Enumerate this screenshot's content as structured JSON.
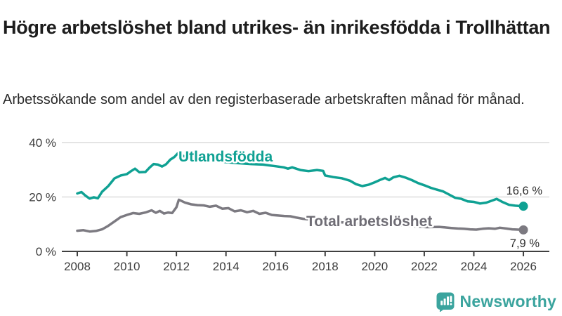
{
  "header": {
    "title": "Högre arbetslöshet bland utrikes- än inrikesfödda i Trollhättan",
    "subtitle": "Arbetssökande som andel av den registerbaserade arbetskraften månad för månad."
  },
  "chart_data": {
    "type": "line",
    "title": "Högre arbetslöshet bland utrikes- än inrikesfödda i Trollhättan",
    "subtitle": "Arbetssökande som andel av den registerbaserade arbetskraften månad för månad.",
    "grid": "horizontal",
    "legend_position": "inline-labels",
    "x_axis": {
      "ticks": [
        2008,
        2010,
        2012,
        2014,
        2016,
        2018,
        2020,
        2022,
        2024,
        2026
      ],
      "range": [
        2008,
        2026
      ],
      "unit": "year"
    },
    "y_axis": {
      "ticks": [
        0,
        20,
        40
      ],
      "tick_labels": [
        "0 %",
        "20 %",
        "40 %"
      ],
      "range": [
        0,
        40
      ],
      "unit": "%"
    },
    "series": [
      {
        "name": "Utlandsfödda",
        "color": "#0fa193",
        "end_label": "16,6 %",
        "end_value": 16.6,
        "points": [
          [
            2008.0,
            21.3
          ],
          [
            2008.17,
            21.8
          ],
          [
            2008.33,
            20.5
          ],
          [
            2008.5,
            19.4
          ],
          [
            2008.67,
            19.9
          ],
          [
            2008.83,
            19.5
          ],
          [
            2009.0,
            21.9
          ],
          [
            2009.25,
            24.0
          ],
          [
            2009.5,
            26.8
          ],
          [
            2009.75,
            27.9
          ],
          [
            2010.0,
            28.4
          ],
          [
            2010.17,
            29.5
          ],
          [
            2010.33,
            30.4
          ],
          [
            2010.5,
            29.1
          ],
          [
            2010.75,
            29.2
          ],
          [
            2010.92,
            30.8
          ],
          [
            2011.08,
            32.1
          ],
          [
            2011.25,
            31.9
          ],
          [
            2011.42,
            31.2
          ],
          [
            2011.58,
            32.0
          ],
          [
            2011.75,
            33.7
          ],
          [
            2011.92,
            34.7
          ],
          [
            2012.05,
            36.0
          ],
          [
            2012.3,
            35.0
          ],
          [
            2012.6,
            34.4
          ],
          [
            2013.0,
            34.0
          ],
          [
            2013.5,
            33.3
          ],
          [
            2014.0,
            32.8
          ],
          [
            2014.5,
            32.4
          ],
          [
            2015.0,
            32.1
          ],
          [
            2015.5,
            31.9
          ],
          [
            2016.0,
            31.3
          ],
          [
            2016.33,
            30.9
          ],
          [
            2016.5,
            30.4
          ],
          [
            2016.67,
            30.9
          ],
          [
            2017.0,
            29.9
          ],
          [
            2017.33,
            29.5
          ],
          [
            2017.67,
            29.9
          ],
          [
            2017.92,
            29.6
          ],
          [
            2018.0,
            27.9
          ],
          [
            2018.33,
            27.3
          ],
          [
            2018.67,
            26.9
          ],
          [
            2019.0,
            26.0
          ],
          [
            2019.25,
            24.7
          ],
          [
            2019.5,
            24.0
          ],
          [
            2019.75,
            24.5
          ],
          [
            2020.0,
            25.4
          ],
          [
            2020.25,
            26.4
          ],
          [
            2020.42,
            27.0
          ],
          [
            2020.58,
            26.2
          ],
          [
            2020.75,
            27.2
          ],
          [
            2021.0,
            27.8
          ],
          [
            2021.25,
            27.1
          ],
          [
            2021.5,
            26.2
          ],
          [
            2021.75,
            25.1
          ],
          [
            2022.0,
            24.3
          ],
          [
            2022.25,
            23.4
          ],
          [
            2022.5,
            22.7
          ],
          [
            2022.75,
            22.1
          ],
          [
            2023.0,
            20.9
          ],
          [
            2023.25,
            19.7
          ],
          [
            2023.5,
            19.3
          ],
          [
            2023.75,
            18.4
          ],
          [
            2024.0,
            18.2
          ],
          [
            2024.25,
            17.6
          ],
          [
            2024.5,
            17.9
          ],
          [
            2024.75,
            18.7
          ],
          [
            2024.92,
            19.3
          ],
          [
            2025.17,
            18.1
          ],
          [
            2025.42,
            17.1
          ],
          [
            2025.67,
            16.8
          ],
          [
            2026.0,
            16.6
          ]
        ]
      },
      {
        "name": "Total arbetslöshet",
        "color": "#7c7a81",
        "end_label": "7,9 %",
        "end_value": 7.9,
        "points": [
          [
            2008.0,
            7.6
          ],
          [
            2008.25,
            7.8
          ],
          [
            2008.5,
            7.3
          ],
          [
            2008.75,
            7.5
          ],
          [
            2009.0,
            8.1
          ],
          [
            2009.25,
            9.4
          ],
          [
            2009.5,
            11.0
          ],
          [
            2009.75,
            12.6
          ],
          [
            2010.0,
            13.4
          ],
          [
            2010.25,
            14.1
          ],
          [
            2010.5,
            13.8
          ],
          [
            2010.75,
            14.3
          ],
          [
            2011.0,
            15.1
          ],
          [
            2011.17,
            14.2
          ],
          [
            2011.33,
            14.9
          ],
          [
            2011.5,
            13.9
          ],
          [
            2011.67,
            14.3
          ],
          [
            2011.83,
            14.1
          ],
          [
            2012.0,
            16.2
          ],
          [
            2012.1,
            19.0
          ],
          [
            2012.35,
            17.9
          ],
          [
            2012.6,
            17.3
          ],
          [
            2012.85,
            17.0
          ],
          [
            2013.1,
            16.9
          ],
          [
            2013.35,
            16.4
          ],
          [
            2013.6,
            16.8
          ],
          [
            2013.85,
            15.7
          ],
          [
            2014.1,
            15.9
          ],
          [
            2014.35,
            14.7
          ],
          [
            2014.6,
            15.1
          ],
          [
            2014.85,
            14.4
          ],
          [
            2015.1,
            14.9
          ],
          [
            2015.35,
            13.8
          ],
          [
            2015.6,
            14.2
          ],
          [
            2015.85,
            13.4
          ],
          [
            2016.1,
            13.2
          ],
          [
            2016.35,
            13.0
          ],
          [
            2016.6,
            12.9
          ],
          [
            2016.85,
            12.4
          ],
          [
            2017.1,
            12.0
          ],
          [
            2017.6,
            11.5
          ],
          [
            2018.1,
            11.1
          ],
          [
            2018.6,
            10.7
          ],
          [
            2019.1,
            10.4
          ],
          [
            2019.6,
            10.2
          ],
          [
            2020.1,
            10.4
          ],
          [
            2020.6,
            10.0
          ],
          [
            2021.1,
            9.6
          ],
          [
            2021.6,
            9.2
          ],
          [
            2022.1,
            8.9
          ],
          [
            2022.6,
            9.0
          ],
          [
            2022.85,
            8.8
          ],
          [
            2023.1,
            8.6
          ],
          [
            2023.35,
            8.4
          ],
          [
            2023.6,
            8.3
          ],
          [
            2023.85,
            8.1
          ],
          [
            2024.1,
            8.0
          ],
          [
            2024.35,
            8.3
          ],
          [
            2024.6,
            8.5
          ],
          [
            2024.85,
            8.3
          ],
          [
            2025.05,
            8.7
          ],
          [
            2025.3,
            8.4
          ],
          [
            2025.55,
            8.1
          ],
          [
            2025.8,
            8.0
          ],
          [
            2026.0,
            7.9
          ]
        ]
      }
    ]
  },
  "footer": {
    "brand": "Newsworthy",
    "brand_color": "#3ba49e",
    "logo_icon": "bar-chart-speech-bubble-icon"
  }
}
